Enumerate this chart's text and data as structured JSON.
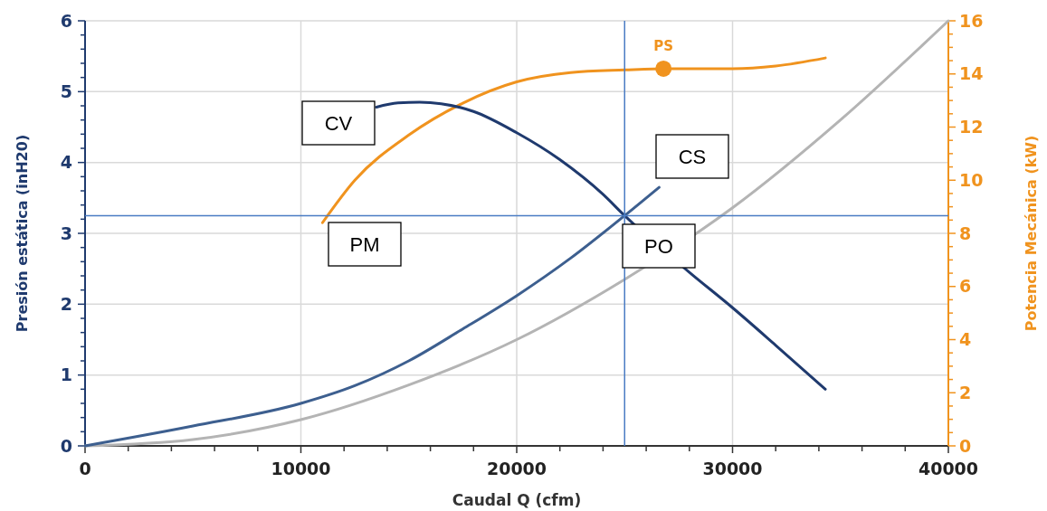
{
  "chart_data": {
    "type": "line",
    "xlabel": "Caudal Q (cfm)",
    "ylabel": "Presión estática (inH20)",
    "y2label": "Potencia Mecánica (kW)",
    "xlim": [
      0,
      40000
    ],
    "ylim": [
      0,
      6
    ],
    "y2lim": [
      0,
      16
    ],
    "xticks": [
      0,
      {
        "value": 2000,
        "label": null
      },
      {
        "value": 4000,
        "label": null
      },
      {
        "value": 6000,
        "label": null
      },
      {
        "value": 8000,
        "label": null
      },
      10000,
      {
        "value": 12000,
        "label": null
      },
      {
        "value": 14000,
        "label": null
      },
      {
        "value": 16000,
        "label": null
      },
      {
        "value": 18000,
        "label": null
      },
      20000,
      {
        "value": 22000,
        "label": null
      },
      {
        "value": 24000,
        "label": null
      },
      {
        "value": 26000,
        "label": null
      },
      {
        "value": 28000,
        "label": null
      },
      30000,
      {
        "value": 32000,
        "label": null
      },
      {
        "value": 34000,
        "label": null
      },
      {
        "value": 36000,
        "label": null
      },
      {
        "value": 38000,
        "label": null
      },
      40000
    ],
    "yticks": [
      0,
      {
        "value": 0.2,
        "label": null
      },
      {
        "value": 0.4,
        "label": null
      },
      {
        "value": 0.6,
        "label": null
      },
      {
        "value": 0.8,
        "label": null
      },
      1,
      {
        "value": 1.2,
        "label": null
      },
      {
        "value": 1.4,
        "label": null
      },
      {
        "value": 1.6,
        "label": null
      },
      {
        "value": 1.8,
        "label": null
      },
      2,
      {
        "value": 2.2,
        "label": null
      },
      {
        "value": 2.4,
        "label": null
      },
      {
        "value": 2.6,
        "label": null
      },
      {
        "value": 2.8,
        "label": null
      },
      3,
      {
        "value": 3.2,
        "label": null
      },
      {
        "value": 3.4,
        "label": null
      },
      {
        "value": 3.6,
        "label": null
      },
      {
        "value": 3.8,
        "label": null
      },
      4,
      {
        "value": 4.2,
        "label": null
      },
      {
        "value": 4.4,
        "label": null
      },
      {
        "value": 4.6,
        "label": null
      },
      {
        "value": 4.8,
        "label": null
      },
      5,
      {
        "value": 5.2,
        "label": null
      },
      {
        "value": 5.4,
        "label": null
      },
      {
        "value": 5.6,
        "label": null
      },
      {
        "value": 5.8,
        "label": null
      },
      6
    ],
    "y2ticks": [
      0,
      {
        "value": 0.5,
        "label": null
      },
      {
        "value": 1,
        "label": null
      },
      {
        "value": 1.5,
        "label": null
      },
      2,
      {
        "value": 2.5,
        "label": null
      },
      {
        "value": 3,
        "label": null
      },
      {
        "value": 3.5,
        "label": null
      },
      4,
      {
        "value": 4.5,
        "label": null
      },
      {
        "value": 5,
        "label": null
      },
      {
        "value": 5.5,
        "label": null
      },
      6,
      {
        "value": 6.5,
        "label": null
      },
      {
        "value": 7,
        "label": null
      },
      {
        "value": 7.5,
        "label": null
      },
      8,
      {
        "value": 8.5,
        "label": null
      },
      {
        "value": 9,
        "label": null
      },
      {
        "value": 9.5,
        "label": null
      },
      10,
      {
        "value": 10.5,
        "label": null
      },
      {
        "value": 11,
        "label": null
      },
      {
        "value": 11.5,
        "label": null
      },
      12,
      {
        "value": 12.5,
        "label": null
      },
      {
        "value": 13,
        "label": null
      },
      {
        "value": 13.5,
        "label": null
      },
      14,
      {
        "value": 14.5,
        "label": null
      },
      {
        "value": 15,
        "label": null
      },
      {
        "value": 15.5,
        "label": null
      },
      16
    ],
    "grid": true,
    "line_style": "solid",
    "series": [
      {
        "color": "#b4b4b4",
        "x": [
          0,
          5000,
          10000,
          15000,
          20000,
          25000,
          30000,
          35000,
          40000
        ],
        "values": [
          0,
          0.09,
          0.37,
          0.86,
          1.5,
          2.35,
          3.36,
          4.6,
          6.0
        ]
      },
      {
        "color": "#f0931e",
        "axis": "y2",
        "x": [
          11000,
          12500,
          15000,
          17500,
          20000,
          22500,
          25000,
          27000,
          30000,
          32000,
          34300
        ],
        "values": [
          8.4,
          10.0,
          11.7,
          12.9,
          13.7,
          14.05,
          14.15,
          14.2,
          14.2,
          14.3,
          14.6
        ]
      },
      {
        "color": "#1f3a6e",
        "x": [
          13500,
          14500,
          15500,
          16500,
          18000,
          20000,
          22000,
          24000,
          25000,
          28000,
          30000,
          32000,
          34300
        ],
        "values": [
          4.78,
          4.84,
          4.85,
          4.83,
          4.72,
          4.42,
          4.04,
          3.55,
          3.25,
          2.45,
          1.95,
          1.42,
          0.8
        ]
      },
      {
        "color": "#3d5f8f",
        "x": [
          0,
          5000,
          10000,
          12500,
          15000,
          17500,
          20000,
          22500,
          25000,
          26600
        ],
        "values": [
          0,
          0.28,
          0.6,
          0.85,
          1.2,
          1.65,
          2.12,
          2.65,
          3.25,
          3.65
        ]
      },
      {
        "type": "scatter",
        "name": "PS",
        "color": "#f0931e",
        "axis": "y2",
        "marker": "circle",
        "x": [
          26800
        ],
        "values": [
          14.2
        ]
      }
    ],
    "ref_lines": [
      {
        "axis": "y",
        "value": 3.25,
        "color": "#4a7cc4"
      },
      {
        "axis": "x",
        "value": 25000,
        "color": "#4a7cc4"
      }
    ],
    "annotations": [
      "CV",
      "PM",
      "CS",
      "PO"
    ]
  }
}
